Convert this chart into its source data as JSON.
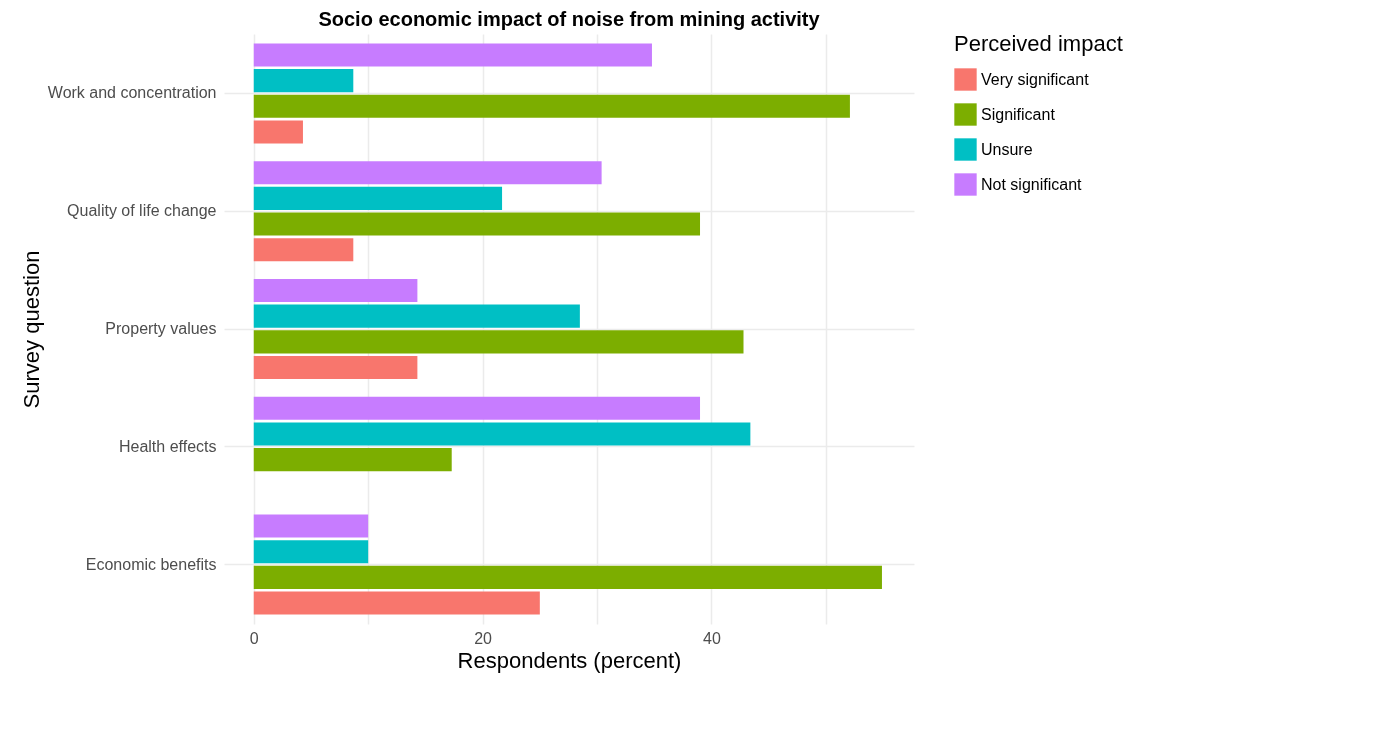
{
  "chart_data": {
    "type": "bar",
    "orientation": "horizontal",
    "title": "Socio economic impact of noise from mining activity",
    "xlabel": "Respondents (percent)",
    "ylabel": "Survey question",
    "legend_title": "Perceived impact",
    "categories": [
      "Work and concentration",
      "Quality of life change",
      "Property values",
      "Health effects",
      "Economic benefits"
    ],
    "series": [
      {
        "name": "Very significant",
        "color": "#f8766d",
        "values": [
          4.3,
          8.7,
          14.3,
          0,
          25.0
        ]
      },
      {
        "name": "Significant",
        "color": "#7cae00",
        "values": [
          52.1,
          39.0,
          42.8,
          17.3,
          54.9
        ]
      },
      {
        "name": "Unsure",
        "color": "#00bfc4",
        "values": [
          8.7,
          21.7,
          28.5,
          43.4,
          10.0
        ]
      },
      {
        "name": "Not significant",
        "color": "#c77cff",
        "values": [
          34.8,
          30.4,
          14.3,
          39.0,
          10.0
        ]
      }
    ],
    "xlim": [
      -2.6,
      57.7
    ],
    "xticks": [
      0,
      {
        "value": 10,
        "label": null
      },
      20,
      {
        "value": 30,
        "label": null
      },
      40,
      {
        "value": 50,
        "label": null
      }
    ],
    "grid": true,
    "legend": "right"
  }
}
